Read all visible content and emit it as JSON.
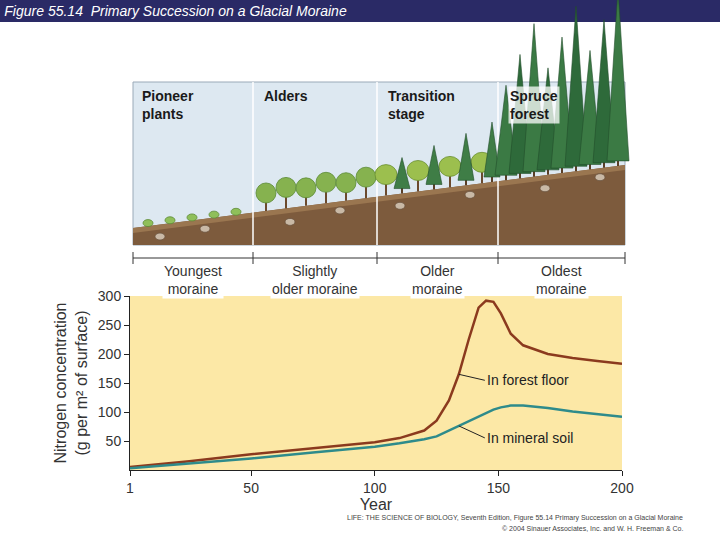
{
  "chart_data": {
    "type": "line",
    "title": "Figure 55.14  Primary Succession on a Glacial Moraine",
    "x_label": "Year",
    "y_label": [
      "Nitrogen concentration",
      "(g per m² of surface)"
    ],
    "x": [
      1,
      25,
      50,
      75,
      100,
      110,
      120,
      125,
      130,
      134,
      138,
      142,
      145,
      148,
      151,
      155,
      160,
      170,
      180,
      190,
      200
    ],
    "series": [
      {
        "name": "In forest floor",
        "color": "#8b3a1e",
        "values": [
          5,
          15,
          27,
          37,
          48,
          55,
          68,
          85,
          120,
          165,
          225,
          280,
          292,
          290,
          270,
          235,
          215,
          200,
          193,
          188,
          183
        ]
      },
      {
        "name": "In mineral soil",
        "color": "#2e8b8b",
        "values": [
          3,
          11,
          20,
          30,
          40,
          46,
          53,
          58,
          68,
          76,
          84,
          92,
          98,
          104,
          108,
          111,
          111,
          107,
          101,
          96,
          92
        ]
      }
    ],
    "xlim": [
      1,
      200
    ],
    "xticks": [
      1,
      50,
      100,
      150,
      200
    ],
    "ylim": [
      0,
      300
    ],
    "yticks": [
      50,
      100,
      150,
      200,
      250,
      300
    ],
    "grid": false,
    "stages": [
      [
        "Pioneer",
        "plants"
      ],
      [
        "Alders"
      ],
      [
        "Transition",
        "stage"
      ],
      [
        "Spruce",
        "forest"
      ]
    ],
    "zones": [
      [
        "Youngest",
        "moraine"
      ],
      [
        "Slightly",
        "older moraine"
      ],
      [
        "Older",
        "moraine"
      ],
      [
        "Oldest",
        "moraine"
      ]
    ],
    "source": [
      "LIFE: THE SCIENCE OF BIOLOGY, Seventh Edition, Figure 55.14 Primary Succession on a Glacial Moraine",
      "© 2004 Sinauer Associates, Inc. and W. H. Freeman & Co."
    ]
  }
}
